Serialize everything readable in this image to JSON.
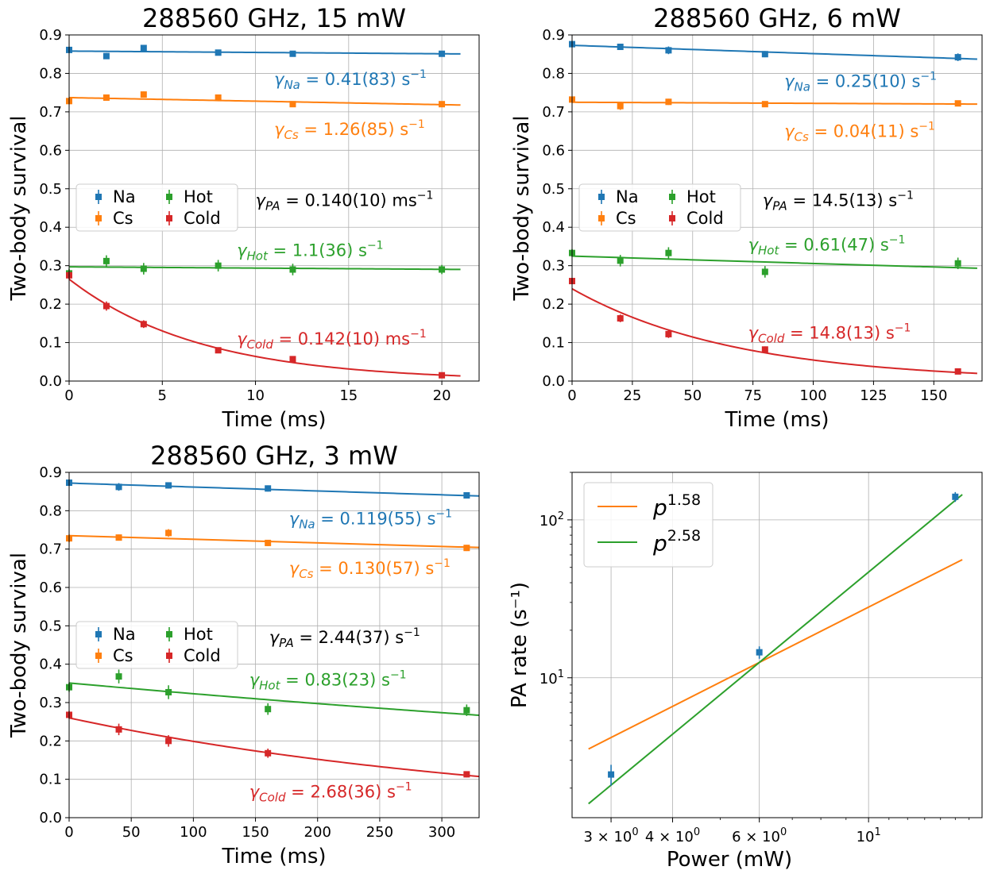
{
  "colors": {
    "na": "#1f77b4",
    "cs": "#ff7f0e",
    "hot": "#2ca02c",
    "cold": "#d62728",
    "grid": "#b0b0b0",
    "text": "#000000"
  },
  "chart_data": [
    {
      "type": "scatter",
      "title": "288560 GHz, 15 mW",
      "xlabel": "Time (ms)",
      "ylabel": "Two-body survival",
      "xlim": [
        0,
        22
      ],
      "ylim": [
        0,
        0.9
      ],
      "xticks": [
        0,
        5,
        10,
        15,
        20
      ],
      "xtick_labels": [
        "0",
        "5",
        "10",
        "15",
        "20"
      ],
      "yticks": [
        0,
        0.1,
        0.2,
        0.3,
        0.4,
        0.5,
        0.6,
        0.7,
        0.8,
        0.9
      ],
      "ytick_labels": [
        "0.0",
        "0.1",
        "0.2",
        "0.3",
        "0.4",
        "0.5",
        "0.6",
        "0.7",
        "0.8",
        "0.9"
      ],
      "grid": true,
      "legend": {
        "position": "center-left",
        "entries": [
          "Na",
          "Cs",
          "Hot",
          "Cold"
        ]
      },
      "series": [
        {
          "name": "Na",
          "color": "#1f77b4",
          "x": [
            0,
            2,
            4,
            8,
            12,
            20
          ],
          "y": [
            0.861,
            0.845,
            0.866,
            0.854,
            0.851,
            0.851
          ],
          "err": [
            0.006,
            0.008,
            0.008,
            0.007,
            0.007,
            0.007
          ],
          "fit": {
            "a": 0.858,
            "k": 0.00041,
            "x_end": 21
          }
        },
        {
          "name": "Cs",
          "color": "#ff7f0e",
          "x": [
            0,
            2,
            4,
            8,
            12,
            20
          ],
          "y": [
            0.728,
            0.737,
            0.745,
            0.737,
            0.72,
            0.72
          ],
          "err": [
            0.008,
            0.007,
            0.008,
            0.007,
            0.007,
            0.007
          ],
          "fit": {
            "a": 0.737,
            "k": 0.00126,
            "x_end": 21
          }
        },
        {
          "name": "Hot",
          "color": "#2ca02c",
          "x": [
            0,
            2,
            4,
            8,
            12,
            20
          ],
          "y": [
            0.28,
            0.312,
            0.292,
            0.3,
            0.29,
            0.29
          ],
          "err": [
            0.012,
            0.015,
            0.015,
            0.015,
            0.015,
            0.012
          ],
          "fit": {
            "a": 0.297,
            "k": 0.0011,
            "x_end": 21
          }
        },
        {
          "name": "Cold",
          "color": "#d62728",
          "x": [
            0,
            2,
            4,
            8,
            12,
            20
          ],
          "y": [
            0.275,
            0.195,
            0.148,
            0.08,
            0.057,
            0.015
          ],
          "err": [
            0.01,
            0.012,
            0.01,
            0.006,
            0.005,
            0.004
          ],
          "fit": {
            "a": 0.265,
            "k": 0.142,
            "x_end": 21
          }
        }
      ],
      "annotations": [
        {
          "sym": "γ",
          "sub": "Na",
          "val": " = 0.41(83) s",
          "sup": "−1",
          "color": "#1f77b4",
          "x": 11,
          "y": 0.77
        },
        {
          "sym": "γ",
          "sub": "Cs",
          "val": " = 1.26(85) s",
          "sup": "−1",
          "color": "#ff7f0e",
          "x": 11,
          "y": 0.64
        },
        {
          "sym": "γ",
          "sub": "PA",
          "val": " = 0.140(10) ms",
          "sup": "−1",
          "color": "#000000",
          "x": 10,
          "y": 0.455
        },
        {
          "sym": "γ",
          "sub": "Hot",
          "val": " = 1.1(36) s",
          "sup": "−1",
          "color": "#2ca02c",
          "x": 9,
          "y": 0.325
        },
        {
          "sym": "γ",
          "sub": "Cold",
          "val": " = 0.142(10) ms",
          "sup": "−1",
          "color": "#d62728",
          "x": 9,
          "y": 0.095
        }
      ]
    },
    {
      "type": "scatter",
      "title": "288560 GHz, 6 mW",
      "xlabel": "Time (ms)",
      "ylabel": "Two-body survival",
      "xlim": [
        0,
        170
      ],
      "ylim": [
        0,
        0.9
      ],
      "xticks": [
        0,
        25,
        50,
        75,
        100,
        125,
        150
      ],
      "xtick_labels": [
        "0",
        "25",
        "50",
        "75",
        "100",
        "125",
        "150"
      ],
      "yticks": [
        0,
        0.1,
        0.2,
        0.3,
        0.4,
        0.5,
        0.6,
        0.7,
        0.8,
        0.9
      ],
      "ytick_labels": [
        "0.0",
        "0.1",
        "0.2",
        "0.3",
        "0.4",
        "0.5",
        "0.6",
        "0.7",
        "0.8",
        "0.9"
      ],
      "grid": true,
      "legend": {
        "position": "center-left",
        "entries": [
          "Na",
          "Cs",
          "Hot",
          "Cold"
        ]
      },
      "series": [
        {
          "name": "Na",
          "color": "#1f77b4",
          "x": [
            0,
            20,
            40,
            80,
            160
          ],
          "y": [
            0.876,
            0.869,
            0.86,
            0.85,
            0.842
          ],
          "err": [
            0.008,
            0.008,
            0.01,
            0.008,
            0.01
          ],
          "fit": {
            "a": 0.873,
            "k": 0.00025,
            "x_end": 168
          }
        },
        {
          "name": "Cs",
          "color": "#ff7f0e",
          "x": [
            0,
            20,
            40,
            80,
            160
          ],
          "y": [
            0.732,
            0.715,
            0.726,
            0.72,
            0.722
          ],
          "err": [
            0.007,
            0.01,
            0.008,
            0.007,
            0.007
          ],
          "fit": {
            "a": 0.725,
            "k": 4e-05,
            "x_end": 168
          }
        },
        {
          "name": "Hot",
          "color": "#2ca02c",
          "x": [
            0,
            20,
            40,
            80,
            160
          ],
          "y": [
            0.333,
            0.313,
            0.333,
            0.284,
            0.306
          ],
          "err": [
            0.01,
            0.015,
            0.015,
            0.015,
            0.015
          ],
          "fit": {
            "a": 0.325,
            "k": 0.00061,
            "x_end": 168
          }
        },
        {
          "name": "Cold",
          "color": "#d62728",
          "x": [
            0,
            20,
            40,
            80,
            160
          ],
          "y": [
            0.26,
            0.163,
            0.122,
            0.082,
            0.025
          ],
          "err": [
            0.006,
            0.01,
            0.01,
            0.008,
            0.004
          ],
          "fit": {
            "a": 0.24,
            "k": 0.0148,
            "x_end": 168
          }
        }
      ],
      "annotations": [
        {
          "sym": "γ",
          "sub": "Na",
          "val": " = 0.25(10) s",
          "sup": "−1",
          "color": "#1f77b4",
          "x": 88,
          "y": 0.765
        },
        {
          "sym": "γ",
          "sub": "Cs",
          "val": " = 0.04(11) s",
          "sup": "−1",
          "color": "#ff7f0e",
          "x": 88,
          "y": 0.635
        },
        {
          "sym": "γ",
          "sub": "PA",
          "val": " = 14.5(13) s",
          "sup": "−1",
          "color": "#000000",
          "x": 79,
          "y": 0.455
        },
        {
          "sym": "γ",
          "sub": "Hot",
          "val": " = 0.61(47) s",
          "sup": "−1",
          "color": "#2ca02c",
          "x": 73,
          "y": 0.34
        },
        {
          "sym": "γ",
          "sub": "Cold",
          "val": " = 14.8(13) s",
          "sup": "−1",
          "color": "#d62728",
          "x": 73,
          "y": 0.11
        }
      ]
    },
    {
      "type": "scatter",
      "title": "288560 GHz, 3 mW",
      "xlabel": "Time (ms)",
      "ylabel": "Two-body survival",
      "xlim": [
        0,
        330
      ],
      "ylim": [
        0,
        0.9
      ],
      "xticks": [
        0,
        50,
        100,
        150,
        200,
        250,
        300
      ],
      "xtick_labels": [
        "0",
        "50",
        "100",
        "150",
        "200",
        "250",
        "300"
      ],
      "yticks": [
        0,
        0.1,
        0.2,
        0.3,
        0.4,
        0.5,
        0.6,
        0.7,
        0.8,
        0.9
      ],
      "ytick_labels": [
        "0.0",
        "0.1",
        "0.2",
        "0.3",
        "0.4",
        "0.5",
        "0.6",
        "0.7",
        "0.8",
        "0.9"
      ],
      "grid": true,
      "legend": {
        "position": "center-left",
        "entries": [
          "Na",
          "Cs",
          "Hot",
          "Cold"
        ]
      },
      "series": [
        {
          "name": "Na",
          "color": "#1f77b4",
          "x": [
            0,
            40,
            80,
            160,
            320
          ],
          "y": [
            0.873,
            0.862,
            0.866,
            0.858,
            0.84
          ],
          "err": [
            0.008,
            0.01,
            0.008,
            0.008,
            0.008
          ],
          "fit": {
            "a": 0.872,
            "k": 0.000119,
            "x_end": 330
          }
        },
        {
          "name": "Cs",
          "color": "#ff7f0e",
          "x": [
            0,
            40,
            80,
            160,
            320
          ],
          "y": [
            0.728,
            0.73,
            0.742,
            0.716,
            0.703
          ],
          "err": [
            0.01,
            0.008,
            0.01,
            0.008,
            0.008
          ],
          "fit": {
            "a": 0.735,
            "k": 0.00013,
            "x_end": 330
          }
        },
        {
          "name": "Hot",
          "color": "#2ca02c",
          "x": [
            0,
            40,
            80,
            160,
            320
          ],
          "y": [
            0.34,
            0.368,
            0.327,
            0.283,
            0.28
          ],
          "err": [
            0.012,
            0.018,
            0.018,
            0.015,
            0.015
          ],
          "fit": {
            "a": 0.351,
            "k": 0.00083,
            "x_end": 330
          }
        },
        {
          "name": "Cold",
          "color": "#d62728",
          "x": [
            0,
            40,
            80,
            160,
            320
          ],
          "y": [
            0.268,
            0.23,
            0.2,
            0.168,
            0.113
          ],
          "err": [
            0.01,
            0.015,
            0.015,
            0.012,
            0.008
          ],
          "fit": {
            "a": 0.26,
            "k": 0.00268,
            "x_end": 330
          }
        }
      ],
      "annotations": [
        {
          "sym": "γ",
          "sub": "Na",
          "val": " = 0.119(55) s",
          "sup": "−1",
          "color": "#1f77b4",
          "x": 177,
          "y": 0.765
        },
        {
          "sym": "γ",
          "sub": "Cs",
          "val": " = 0.130(57) s",
          "sup": "−1",
          "color": "#ff7f0e",
          "x": 177,
          "y": 0.635
        },
        {
          "sym": "γ",
          "sub": "PA",
          "val": " = 2.44(37) s",
          "sup": "−1",
          "color": "#000000",
          "x": 161,
          "y": 0.455
        },
        {
          "sym": "γ",
          "sub": "Hot",
          "val": " = 0.83(23) s",
          "sup": "−1",
          "color": "#2ca02c",
          "x": 145,
          "y": 0.345
        },
        {
          "sym": "γ",
          "sub": "Cold",
          "val": " = 2.68(36) s",
          "sup": "−1",
          "color": "#d62728",
          "x": 145,
          "y": 0.053
        }
      ]
    },
    {
      "type": "scatter",
      "xlabel": "Power (mW)",
      "ylabel": "PA rate (s⁻¹)",
      "xscale": "log",
      "yscale": "log",
      "xlim": [
        2.5,
        17.0
      ],
      "ylim": [
        1.3,
        200
      ],
      "grid": true,
      "xticks_major": [
        3,
        4,
        6,
        10
      ],
      "xtick_labels": [
        {
          "x": 3,
          "base": "3 × 10",
          "exp": "0"
        },
        {
          "x": 4,
          "base": "4 × 10",
          "exp": "0"
        },
        {
          "x": 6,
          "base": "6 × 10",
          "exp": "0"
        },
        {
          "x": 10,
          "base": "10",
          "exp": "1"
        }
      ],
      "yticks_major": [
        10,
        100
      ],
      "ytick_labels": [
        {
          "y": 10,
          "base": "10",
          "exp": "1"
        },
        {
          "y": 100,
          "base": "10",
          "exp": "2"
        }
      ],
      "legend": {
        "position": "top-left"
      },
      "points": {
        "color": "#1f77b4",
        "x": [
          3,
          6,
          15
        ],
        "y": [
          2.44,
          14.5,
          140
        ],
        "err": [
          0.37,
          1.3,
          10
        ]
      },
      "fits": [
        {
          "name_base": "p",
          "name_exp": "1.58",
          "color": "#ff7f0e",
          "exponent": 1.58,
          "x0": 6,
          "y0": 12.5,
          "xrange": [
            2.7,
            15.5
          ]
        },
        {
          "name_base": "p",
          "name_exp": "2.58",
          "color": "#2ca02c",
          "exponent": 2.58,
          "x0": 6,
          "y0": 12.5,
          "xrange": [
            2.7,
            15.5
          ]
        }
      ]
    }
  ]
}
